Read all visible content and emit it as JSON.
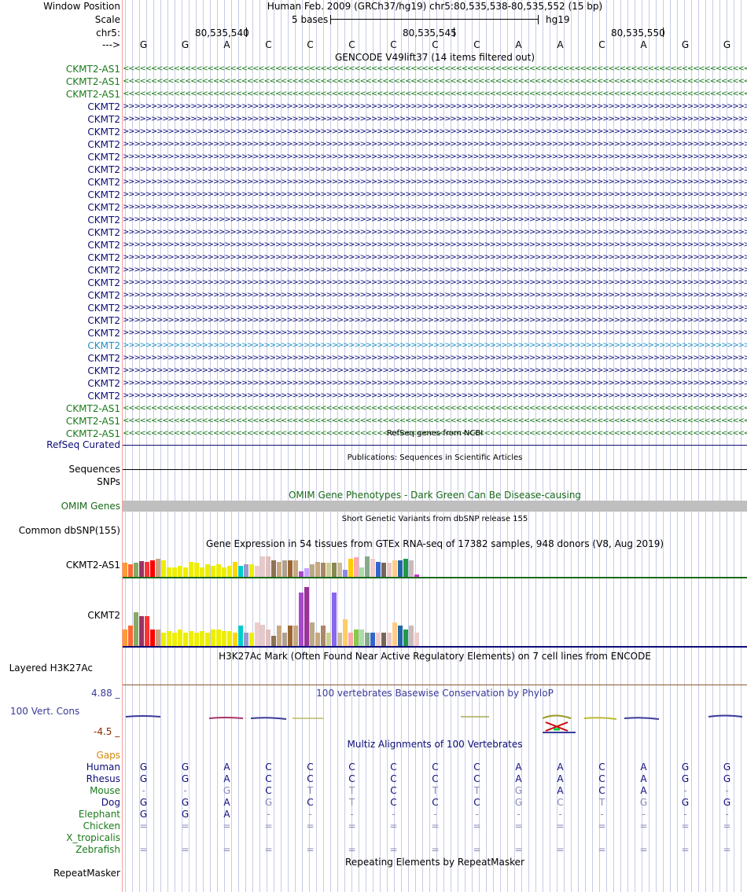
{
  "header": {
    "window_position_label": "Window Position",
    "window_position_value": "Human Feb. 2009 (GRCh37/hg19)   chr5:80,535,538-80,535,552 (15 bp)",
    "scale_label": "Scale",
    "scale_value": "5 bases",
    "scale_assembly": "hg19",
    "chr_label": "chr5:",
    "ticks": [
      "80,535,540",
      "80,535,545",
      "80,535,550"
    ],
    "strand_label": "--->",
    "bases": [
      "G",
      "G",
      "A",
      "C",
      "C",
      "C",
      "C",
      "C",
      "C",
      "A",
      "A",
      "C",
      "A",
      "G",
      "G"
    ]
  },
  "gencode": {
    "title": "GENCODE V49lift37 (14 items filtered out)",
    "items": [
      {
        "name": "CKMT2-AS1",
        "color": "#1a7a1a",
        "dir": "minus"
      },
      {
        "name": "CKMT2-AS1",
        "color": "#1a7a1a",
        "dir": "minus"
      },
      {
        "name": "CKMT2-AS1",
        "color": "#1a7a1a",
        "dir": "minus"
      },
      {
        "name": "CKMT2",
        "color": "#0c0c78",
        "dir": "plus"
      },
      {
        "name": "CKMT2",
        "color": "#0c0c78",
        "dir": "plus"
      },
      {
        "name": "CKMT2",
        "color": "#0c0c78",
        "dir": "plus"
      },
      {
        "name": "CKMT2",
        "color": "#0c0c78",
        "dir": "plus"
      },
      {
        "name": "CKMT2",
        "color": "#0c0c78",
        "dir": "plus"
      },
      {
        "name": "CKMT2",
        "color": "#0c0c78",
        "dir": "plus"
      },
      {
        "name": "CKMT2",
        "color": "#0c0c78",
        "dir": "plus"
      },
      {
        "name": "CKMT2",
        "color": "#0c0c78",
        "dir": "plus"
      },
      {
        "name": "CKMT2",
        "color": "#0c0c78",
        "dir": "plus"
      },
      {
        "name": "CKMT2",
        "color": "#0c0c78",
        "dir": "plus"
      },
      {
        "name": "CKMT2",
        "color": "#0c0c78",
        "dir": "plus"
      },
      {
        "name": "CKMT2",
        "color": "#0c0c78",
        "dir": "plus"
      },
      {
        "name": "CKMT2",
        "color": "#0c0c78",
        "dir": "plus"
      },
      {
        "name": "CKMT2",
        "color": "#0c0c78",
        "dir": "plus"
      },
      {
        "name": "CKMT2",
        "color": "#0c0c78",
        "dir": "plus"
      },
      {
        "name": "CKMT2",
        "color": "#0c0c78",
        "dir": "plus"
      },
      {
        "name": "CKMT2",
        "color": "#0c0c78",
        "dir": "plus"
      },
      {
        "name": "CKMT2",
        "color": "#0c0c78",
        "dir": "plus"
      },
      {
        "name": "CKMT2",
        "color": "#0c0c78",
        "dir": "plus"
      },
      {
        "name": "CKMT2",
        "color": "#1e90c8",
        "dir": "plus"
      },
      {
        "name": "CKMT2",
        "color": "#0c0c78",
        "dir": "plus"
      },
      {
        "name": "CKMT2",
        "color": "#0c0c78",
        "dir": "plus"
      },
      {
        "name": "CKMT2",
        "color": "#0c0c78",
        "dir": "plus"
      },
      {
        "name": "CKMT2",
        "color": "#0c0c78",
        "dir": "plus"
      },
      {
        "name": "CKMT2-AS1",
        "color": "#1a7a1a",
        "dir": "minus"
      },
      {
        "name": "CKMT2-AS1",
        "color": "#1a7a1a",
        "dir": "minus"
      },
      {
        "name": "CKMT2-AS1",
        "color": "#1a7a1a",
        "dir": "minus"
      }
    ]
  },
  "refseq": {
    "title": "RefSeq genes from NCBI",
    "label": "RefSeq Curated"
  },
  "publications": {
    "title": "Publications: Sequences in Scientific Articles",
    "label": "Sequences"
  },
  "snps": {
    "label": "SNPs"
  },
  "omim": {
    "title": "OMIM Gene Phenotypes - Dark Green Can Be Disease-causing",
    "label": "OMIM Genes"
  },
  "dbsnp": {
    "title": "Short Genetic Variants from dbSNP release 155",
    "label": "Common dbSNP(155)"
  },
  "gtex": {
    "title": "Gene Expression in 54 tissues from GTEx RNA-seq of 17382 samples, 948 donors (V8, Aug 2019)",
    "genes": [
      {
        "name": "CKMT2-AS1",
        "heights": [
          0.5,
          0.45,
          0.5,
          0.58,
          0.55,
          0.6,
          0.65,
          0.6,
          0.35,
          0.35,
          0.4,
          0.35,
          0.55,
          0.5,
          0.35,
          0.45,
          0.4,
          0.45,
          0.35,
          0.4,
          0.55,
          0.4,
          0.45,
          0.45,
          0.4,
          0.75,
          0.75,
          0.6,
          0.55,
          0.6,
          0.6,
          0.6,
          0.2,
          0.3,
          0.45,
          0.55,
          0.5,
          0.5,
          0.5,
          0.5,
          0.25,
          0.65,
          0.7,
          0.35,
          0.75,
          0.65,
          0.55,
          0.5,
          0.5,
          0.6,
          0.6,
          0.65,
          0.6,
          0.08
        ],
        "colors": [
          "#ff9933",
          "#ff6633",
          "#88aa66",
          "#993366",
          "#ff3333",
          "#ff0000",
          "#c9a27e",
          "#eeee00",
          "#eeee00",
          "#eeee00",
          "#eeee00",
          "#eeee00",
          "#eeee00",
          "#eeee00",
          "#eeee00",
          "#eeee00",
          "#eeee00",
          "#eeee00",
          "#eeee00",
          "#eeee00",
          "#ffd700",
          "#00cccc",
          "#9999cc",
          "#eeee00",
          "#eecccc",
          "#e8c8c8",
          "#e0c0c0",
          "#8b7355",
          "#c8a882",
          "#b0a090",
          "#996633",
          "#c8a882",
          "#a64ac9",
          "#c9a2ff",
          "#bbaa88",
          "#c8a882",
          "#aa8866",
          "#cccc99",
          "#888855",
          "#ccbb99",
          "#8888ee",
          "#ffcc00",
          "#ffaaaa",
          "#aaddaa",
          "#88aa88",
          "#eecccc",
          "#3366cc",
          "#776655",
          "#e8c8c8",
          "#ffcc88",
          "#2266aa",
          "#229944",
          "#ccbbbb",
          "#cc33cc"
        ]
      },
      {
        "name": "CKMT2",
        "heights": [
          0.25,
          0.3,
          0.5,
          0.45,
          0.45,
          0.25,
          0.25,
          0.2,
          0.22,
          0.2,
          0.25,
          0.2,
          0.22,
          0.2,
          0.22,
          0.2,
          0.25,
          0.25,
          0.22,
          0.22,
          0.2,
          0.3,
          0.2,
          0.2,
          0.35,
          0.32,
          0.25,
          0.15,
          0.3,
          0.2,
          0.3,
          0.3,
          0.8,
          0.88,
          0.35,
          0.2,
          0.3,
          0.2,
          0.8,
          0.2,
          0.4,
          0.2,
          0.25,
          0.25,
          0.2,
          0.2,
          0.2,
          0.2,
          0.2,
          0.35,
          0.3,
          0.25,
          0.3,
          0.2
        ],
        "colors": [
          "#ff9933",
          "#ff6633",
          "#88aa66",
          "#993366",
          "#ff3333",
          "#ff0000",
          "#c9a27e",
          "#eeee00",
          "#eeee00",
          "#eeee00",
          "#eeee00",
          "#eeee00",
          "#eeee00",
          "#eeee00",
          "#eeee00",
          "#eeee00",
          "#eeee00",
          "#eeee00",
          "#eeee00",
          "#eeee00",
          "#ffd700",
          "#00cccc",
          "#9999cc",
          "#eeee00",
          "#eecccc",
          "#e8c8c8",
          "#e0c0c0",
          "#8b7355",
          "#c8a882",
          "#b0a090",
          "#996633",
          "#c8a882",
          "#a64ac9",
          "#993399",
          "#bbaa88",
          "#c8a882",
          "#aa8866",
          "#cccc99",
          "#8866ee",
          "#ccbb99",
          "#ffcc66",
          "#ffaaaa",
          "#88cc44",
          "#aaddaa",
          "#88aa88",
          "#3366cc",
          "#eecccc",
          "#776655",
          "#e8c8c8",
          "#ffcc88",
          "#2266aa",
          "#229944",
          "#ccbbbb",
          "#eecccc"
        ]
      }
    ]
  },
  "h3k27ac": {
    "title": "H3K27Ac Mark (Often Found Near Active Regulatory Elements) on 7 cell lines from ENCODE",
    "label": "Layered H3K27Ac"
  },
  "cons": {
    "title": "100 vertebrates Basewise Conservation by PhyloP",
    "label": "100 Vert. Cons",
    "max": "4.88 _",
    "min": "-4.5 _"
  },
  "multiz": {
    "title": "Multiz Alignments of 100 Vertebrates",
    "gaps_label": "Gaps",
    "species": [
      {
        "name": "Human",
        "color": "#0c0c78",
        "bases": [
          "G",
          "G",
          "A",
          "C",
          "C",
          "C",
          "C",
          "C",
          "C",
          "A",
          "A",
          "C",
          "A",
          "G",
          "G"
        ],
        "dim": []
      },
      {
        "name": "Rhesus",
        "color": "#0c0c78",
        "bases": [
          "G",
          "G",
          "A",
          "C",
          "C",
          "C",
          "C",
          "C",
          "C",
          "A",
          "A",
          "C",
          "A",
          "G",
          "G"
        ],
        "dim": []
      },
      {
        "name": "Mouse",
        "color": "#1a7a1a",
        "bases": [
          "-",
          "-",
          "G",
          "C",
          "T",
          "T",
          "C",
          "T",
          "T",
          "G",
          "A",
          "C",
          "A",
          "-",
          "-"
        ],
        "dim": [
          0,
          1,
          2,
          4,
          5,
          7,
          8,
          9,
          13,
          14
        ]
      },
      {
        "name": "Dog",
        "color": "#0c0c78",
        "bases": [
          "G",
          "G",
          "A",
          "G",
          "C",
          "T",
          "C",
          "C",
          "C",
          "G",
          "C",
          "T",
          "G",
          "G",
          "G"
        ],
        "dim": [
          3,
          5,
          9,
          10,
          11,
          12
        ]
      },
      {
        "name": "Elephant",
        "color": "#1a7a1a",
        "bases": [
          "G",
          "G",
          "A",
          "-",
          "-",
          "-",
          "-",
          "-",
          "-",
          "-",
          "-",
          "-",
          "-",
          "-",
          "-"
        ],
        "dim": [
          3,
          4,
          5,
          6,
          7,
          8,
          9,
          10,
          11,
          12,
          13,
          14
        ]
      },
      {
        "name": "Chicken",
        "color": "#1a7a1a",
        "bases": [
          "=",
          "=",
          "=",
          "=",
          "=",
          "=",
          "=",
          "=",
          "=",
          "=",
          "=",
          "=",
          "=",
          "=",
          "="
        ],
        "dim": [
          0,
          1,
          2,
          3,
          4,
          5,
          6,
          7,
          8,
          9,
          10,
          11,
          12,
          13,
          14
        ]
      },
      {
        "name": "X_tropicalis",
        "color": "#1a7a1a",
        "bases": [],
        "dim": []
      },
      {
        "name": "Zebrafish",
        "color": "#1a7a1a",
        "bases": [
          "=",
          "=",
          "=",
          "=",
          "=",
          "=",
          "=",
          "=",
          "=",
          "=",
          "=",
          "=",
          "=",
          "=",
          "="
        ],
        "dim": [
          0,
          1,
          2,
          3,
          4,
          5,
          6,
          7,
          8,
          9,
          10,
          11,
          12,
          13,
          14
        ]
      }
    ]
  },
  "repeatmasker": {
    "title": "Repeating Elements by RepeatMasker",
    "label": "RepeatMasker"
  }
}
